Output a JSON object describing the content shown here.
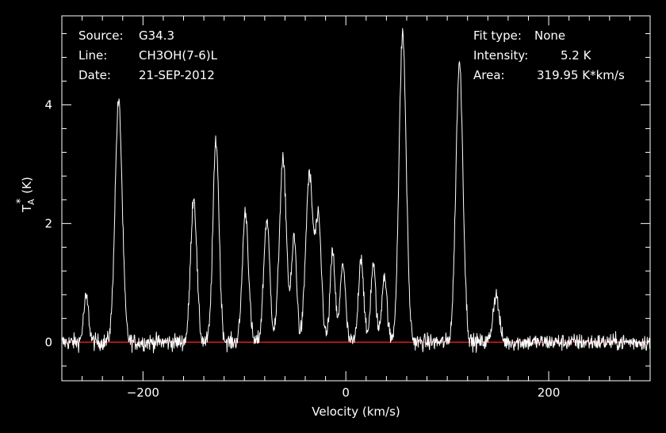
{
  "chart_data": {
    "type": "line",
    "title": "",
    "xlabel": "Velocity (km/s)",
    "ylabel": "T*A (K)",
    "ylabel_main": "T",
    "ylabel_sub": "A",
    "ylabel_sup": "*",
    "ylabel_unit": "(K)",
    "xlim": [
      -280,
      300
    ],
    "ylim": [
      -0.65,
      5.5
    ],
    "xticks": [
      -200,
      0,
      200
    ],
    "xtick_labels": [
      "−200",
      "0",
      "200"
    ],
    "yticks": [
      0,
      2,
      4
    ],
    "ytick_labels": [
      "0",
      "2",
      "4"
    ],
    "baseline": 0,
    "baseline_color": "#ff2020",
    "line_color": "#ffffff",
    "background": "#000000",
    "noise_rms_K": 0.1,
    "peaks": [
      {
        "v": -256,
        "t": 0.75,
        "w": 2.5
      },
      {
        "v": -224,
        "t": 4.05,
        "w": 3.5
      },
      {
        "v": -150,
        "t": 2.45,
        "w": 3.0
      },
      {
        "v": -128,
        "t": 3.4,
        "w": 3.0
      },
      {
        "v": -99,
        "t": 2.2,
        "w": 3.0
      },
      {
        "v": -78,
        "t": 2.05,
        "w": 3.0
      },
      {
        "v": -62,
        "t": 3.05,
        "w": 3.5
      },
      {
        "v": -51,
        "t": 1.75,
        "w": 2.5
      },
      {
        "v": -36,
        "t": 2.8,
        "w": 3.5
      },
      {
        "v": -27,
        "t": 2.0,
        "w": 3.0
      },
      {
        "v": -13,
        "t": 1.5,
        "w": 2.5
      },
      {
        "v": -3,
        "t": 1.35,
        "w": 2.5
      },
      {
        "v": 15,
        "t": 1.45,
        "w": 2.5
      },
      {
        "v": 27,
        "t": 1.3,
        "w": 2.5
      },
      {
        "v": 38,
        "t": 1.15,
        "w": 2.5
      },
      {
        "v": 56,
        "t": 5.2,
        "w": 3.5
      },
      {
        "v": 112,
        "t": 4.7,
        "w": 3.5
      },
      {
        "v": 148,
        "t": 0.8,
        "w": 3.0
      }
    ]
  },
  "header": {
    "source_label": "Source:",
    "source_value": "G34.3",
    "line_label": "Line:",
    "line_value": "CH3OH(7-6)L",
    "date_label": "Date:",
    "date_value": "21-SEP-2012",
    "fit_label": "Fit type:",
    "fit_value": "None",
    "intensity_label": "Intensity:",
    "intensity_value": "5.2 K",
    "area_label": "Area:",
    "area_value": "319.95 K*km/s"
  }
}
